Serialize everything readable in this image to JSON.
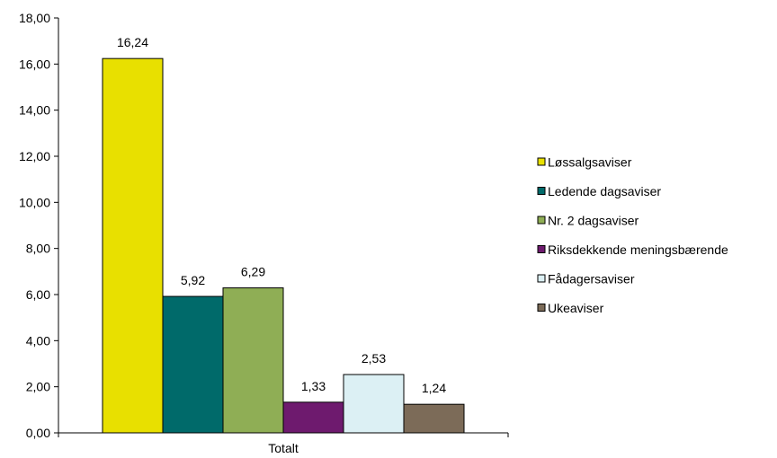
{
  "chart_data": {
    "type": "bar",
    "title": "",
    "xlabel": "",
    "ylabel": "",
    "categories": [
      "Totalt"
    ],
    "series": [
      {
        "name": "Løssalgsaviser",
        "values": [
          16.24
        ],
        "label": "16,24",
        "color": "#e8e000"
      },
      {
        "name": "Ledende dagsaviser",
        "values": [
          5.92
        ],
        "label": "5,92",
        "color": "#006a6a"
      },
      {
        "name": "Nr. 2 dagsaviser",
        "values": [
          6.29
        ],
        "label": "6,29",
        "color": "#8fae55"
      },
      {
        "name": "Riksdekkende meningsbærende",
        "values": [
          1.33
        ],
        "label": "1,33",
        "color": "#6e1a6e"
      },
      {
        "name": "Fådagersaviser",
        "values": [
          2.53
        ],
        "label": "2,53",
        "color": "#dcf0f4"
      },
      {
        "name": "Ukeaviser",
        "values": [
          1.24
        ],
        "label": "1,24",
        "color": "#7c6b58"
      }
    ],
    "ylim": [
      0,
      18
    ],
    "yticks": [
      "0,00",
      "2,00",
      "4,00",
      "6,00",
      "8,00",
      "10,00",
      "12,00",
      "14,00",
      "16,00",
      "18,00"
    ],
    "grid": false,
    "legend": "right"
  }
}
